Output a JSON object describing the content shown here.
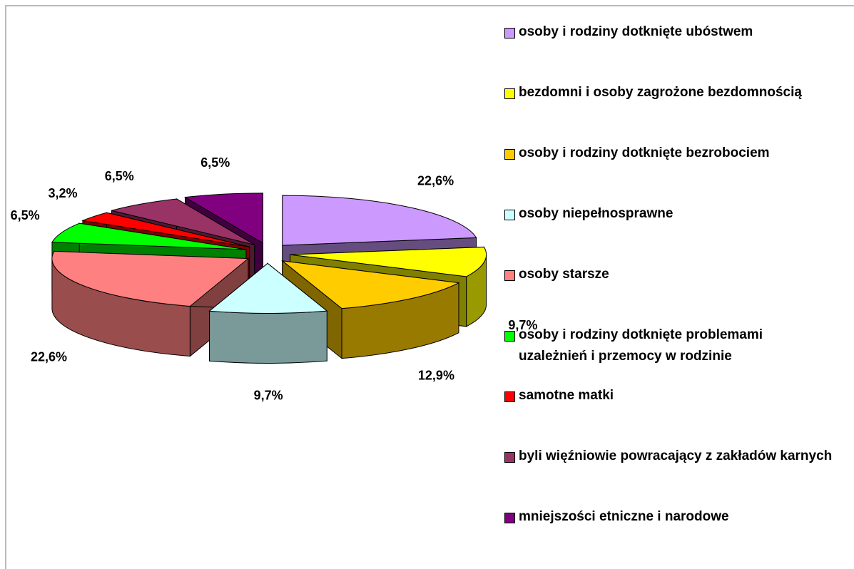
{
  "chart_data": {
    "type": "pie",
    "categories": [
      "osoby i rodziny dotknięte ubóstwem",
      "bezdomni i osoby zagrożone bezdomnością",
      "osoby i rodziny dotknięte bezrobociem",
      "osoby niepełnosprawne",
      "osoby starsze",
      "osoby i rodziny dotknięte problemami uzależnień i przemocy w rodzinie",
      "samotne matki",
      "byli więźniowie powracający z zakładów karnych",
      "mniejszości etniczne i narodowe"
    ],
    "values": [
      22.6,
      9.7,
      12.9,
      9.7,
      22.6,
      6.5,
      3.2,
      6.5,
      6.5
    ],
    "value_labels": [
      "22,6%",
      "9,7%",
      "12,9%",
      "9,7%",
      "22,6%",
      "6,5%",
      "3,2%",
      "6,5%",
      "6,5%"
    ],
    "colors": [
      "#CC99FF",
      "#FFFF00",
      "#FFCC00",
      "#CCFFFF",
      "#FF8080",
      "#00FF00",
      "#FF0000",
      "#993366",
      "#800080"
    ],
    "legend": "right"
  }
}
